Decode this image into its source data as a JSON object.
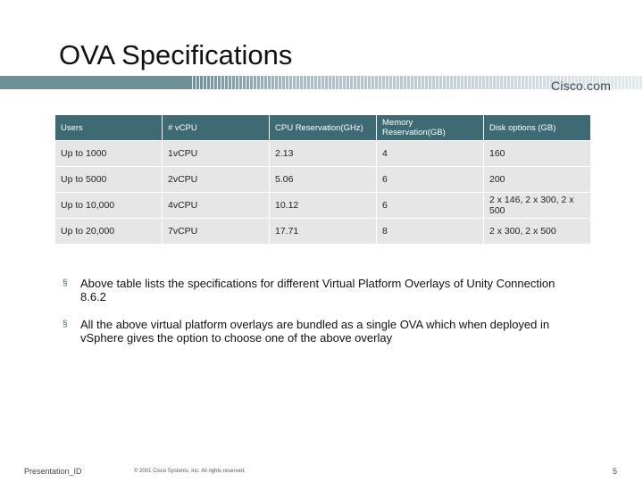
{
  "header": {
    "title": "OVA Specifications",
    "logo": "Cisco.com"
  },
  "table": {
    "columns": [
      "Users",
      "# vCPU",
      "CPU Reservation(GHz)",
      "Memory Reservation(GB)",
      "Disk options (GB)"
    ],
    "rows": [
      [
        "Up to 1000",
        "1vCPU",
        "2.13",
        "4",
        "160"
      ],
      [
        "Up to 5000",
        "2vCPU",
        "5.06",
        "6",
        "200"
      ],
      [
        "Up to 10,000",
        "4vCPU",
        "10.12",
        "6",
        "2 x 146, 2 x 300, 2 x 500"
      ],
      [
        "Up to 20,000",
        "7vCPU",
        "17.71",
        "8",
        "2 x 300, 2 x 500"
      ]
    ]
  },
  "bullets": [
    "Above table lists the specifications for different Virtual Platform Overlays of Unity Connection 8.6.2",
    "All the above virtual platform overlays are bundled as a single OVA which when deployed in vSphere gives the option to choose one of the above overlay"
  ],
  "footer": {
    "presentation_id": "Presentation_ID",
    "copyright": "© 2001 Cisco Systems, Inc. All rights reserved.",
    "page_number": "5"
  }
}
